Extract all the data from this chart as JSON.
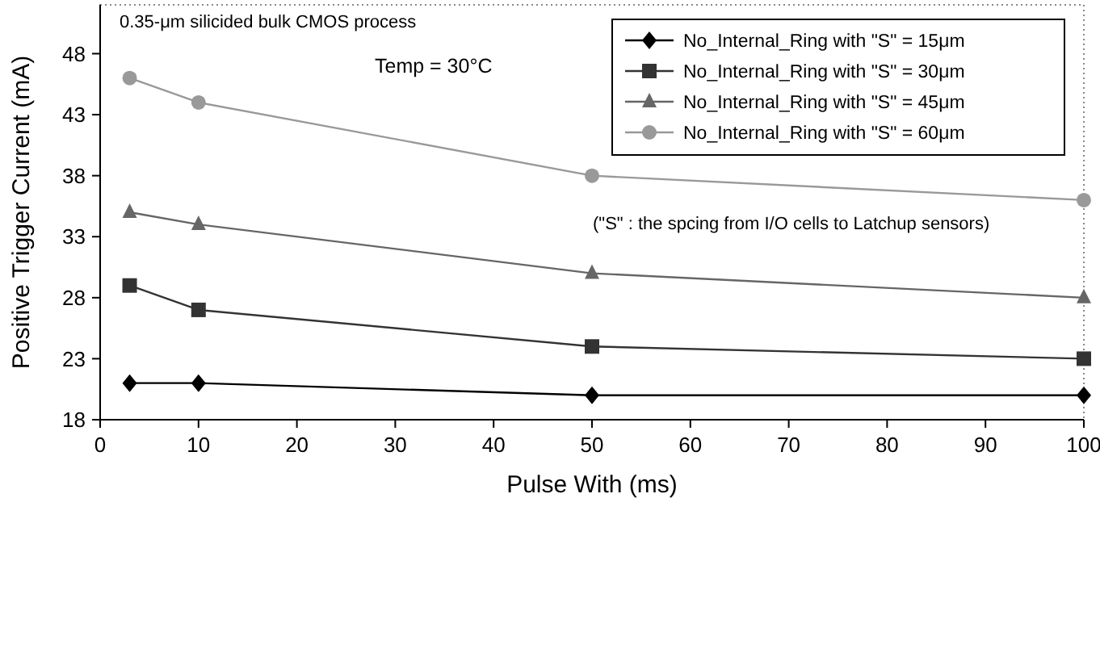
{
  "chart_data": {
    "type": "line",
    "xlabel": "Pulse With (ms)",
    "ylabel": "Positive Trigger Current (mA)",
    "x": [
      3,
      10,
      50,
      100
    ],
    "series": [
      {
        "name": "No_Internal_Ring with \"S\" = 15μm",
        "color": "#000000",
        "marker": "diamond",
        "values": [
          21,
          21,
          20,
          20
        ]
      },
      {
        "name": "No_Internal_Ring with \"S\" = 30μm",
        "color": "#333333",
        "marker": "square",
        "values": [
          29,
          27,
          24,
          23
        ]
      },
      {
        "name": "No_Internal_Ring with \"S\" = 45μm",
        "color": "#666666",
        "marker": "triangle",
        "values": [
          35,
          34,
          30,
          28
        ]
      },
      {
        "name": "No_Internal_Ring with \"S\" = 60μm",
        "color": "#999999",
        "marker": "circle",
        "values": [
          46,
          44,
          38,
          36
        ]
      }
    ],
    "xlim": [
      0,
      100
    ],
    "xticks": [
      0,
      10,
      20,
      30,
      40,
      50,
      60,
      70,
      80,
      90,
      100
    ],
    "ylim": [
      18,
      52
    ],
    "yticks": [
      18,
      23,
      28,
      33,
      38,
      43,
      48
    ],
    "grid": false,
    "legend": "top right",
    "line_style": "solid",
    "annotations": [
      "0.35-μm silicided bulk CMOS process",
      "Temp = 30°C",
      "(\"S\" : the spcing from I/O cells to Latchup sensors)"
    ]
  }
}
